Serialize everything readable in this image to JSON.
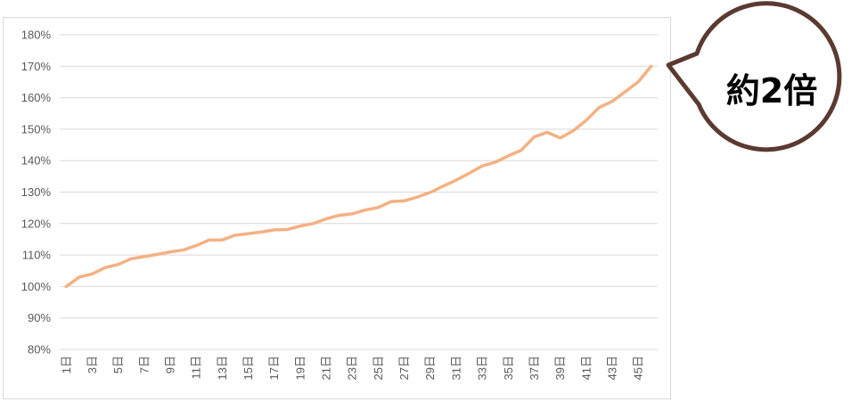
{
  "chart_data": {
    "type": "line",
    "title": "",
    "xlabel": "",
    "ylabel": "",
    "x": [
      "1日",
      "2日",
      "3日",
      "4日",
      "5日",
      "6日",
      "7日",
      "8日",
      "9日",
      "10日",
      "11日",
      "12日",
      "13日",
      "14日",
      "15日",
      "16日",
      "17日",
      "18日",
      "19日",
      "20日",
      "21日",
      "22日",
      "23日",
      "24日",
      "25日",
      "26日",
      "27日",
      "28日",
      "29日",
      "30日",
      "31日",
      "32日",
      "33日",
      "34日",
      "35日",
      "36日",
      "37日",
      "38日",
      "39日",
      "40日",
      "41日",
      "42日",
      "43日",
      "44日",
      "45日",
      "46日"
    ],
    "x_tick_labels": [
      "1日",
      "3日",
      "5日",
      "7日",
      "9日",
      "11日",
      "13日",
      "15日",
      "17日",
      "19日",
      "21日",
      "23日",
      "25日",
      "27日",
      "29日",
      "31日",
      "33日",
      "35日",
      "37日",
      "39日",
      "41日",
      "43日",
      "45日"
    ],
    "series": [
      {
        "values": [
          100,
          103,
          104,
          106,
          107,
          108.8,
          109.5,
          110.2,
          111,
          111.6,
          113,
          114.8,
          114.8,
          116.3,
          116.8,
          117.3,
          118,
          118.1,
          119.2,
          120,
          121.5,
          122.6,
          123.1,
          124.3,
          125.1,
          127,
          127.2,
          128.4,
          129.9,
          131.9,
          133.8,
          136,
          138.3,
          139.5,
          141.5,
          143.3,
          147.5,
          149,
          147.2,
          149.5,
          152.8,
          156.9,
          158.8,
          161.9,
          165,
          170
        ],
        "color": "#f4b183"
      }
    ],
    "y_ticks": [
      "80%",
      "90%",
      "100%",
      "110%",
      "120%",
      "130%",
      "140%",
      "150%",
      "160%",
      "170%",
      "180%"
    ],
    "ylim": [
      80,
      180
    ],
    "grid": true,
    "legend": "none"
  },
  "callout": {
    "text": "約2倍",
    "border_color": "#5b3a32",
    "fill_color": "#ffffff"
  }
}
